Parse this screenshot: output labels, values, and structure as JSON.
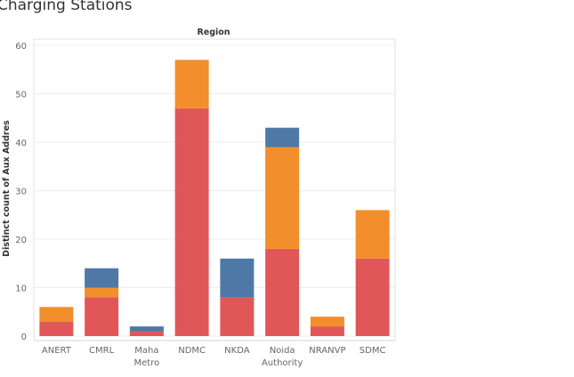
{
  "title": "Charging Stations",
  "chart_data": {
    "type": "bar",
    "stacked": true,
    "column_header": "Region",
    "ylabel": "Distinct count of Aux Addres",
    "xlabel": "",
    "ylim": [
      0,
      60
    ],
    "yticks": [
      0,
      10,
      20,
      30,
      40,
      50,
      60
    ],
    "grid": true,
    "categories": [
      [
        "ANERT"
      ],
      [
        "CMRL"
      ],
      [
        "Maha",
        "Metro"
      ],
      [
        "NDMC"
      ],
      [
        "NKDA"
      ],
      [
        "Noida",
        "Authority"
      ],
      [
        "NRANVP"
      ],
      [
        "SDMC"
      ]
    ],
    "series": [
      {
        "color": "#e15759",
        "values": [
          3,
          8,
          1,
          47,
          8,
          18,
          2,
          16
        ]
      },
      {
        "color": "#f28e2b",
        "values": [
          3,
          2,
          0,
          10,
          0,
          21,
          2,
          10
        ]
      },
      {
        "color": "#4e79a7",
        "values": [
          0,
          4,
          1,
          0,
          8,
          4,
          0,
          0
        ]
      }
    ]
  }
}
